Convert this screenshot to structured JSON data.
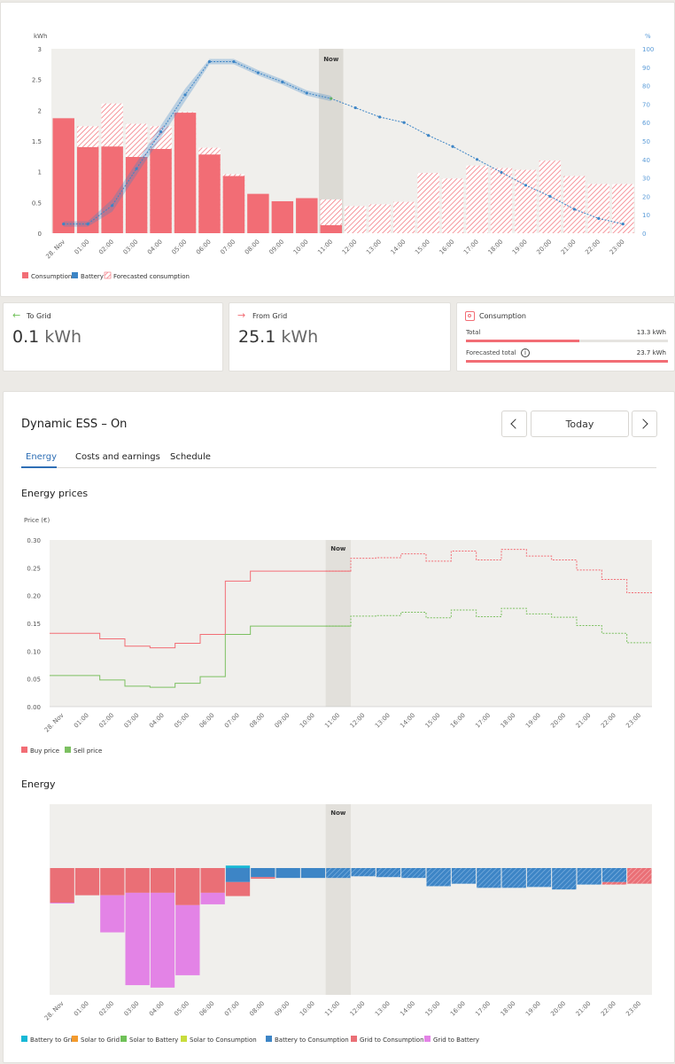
{
  "top_chart": {
    "y_unit_left": "kWh",
    "y_unit_right": "%",
    "y_ticks_left": [
      "3",
      "2.5",
      "2",
      "1.5",
      "1",
      "0.5",
      "0"
    ],
    "y_ticks_right": [
      "100",
      "90",
      "80",
      "70",
      "60",
      "50",
      "40",
      "30",
      "20",
      "10",
      "0"
    ],
    "now_label": "Now",
    "legend": [
      "Consumption",
      "Battery",
      "Forecasted consumption"
    ],
    "colors": {
      "consumption": "#f26d75",
      "battery": "#3d85c6",
      "forecast": "#f26d75",
      "now_band": "#dcdad4"
    }
  },
  "stats": {
    "to_grid": {
      "label": "To Grid",
      "value": "0.1",
      "unit": "kWh",
      "arrow": "arrow-left-icon"
    },
    "from_grid": {
      "label": "From Grid",
      "value": "25.1",
      "unit": "kWh",
      "arrow": "arrow-right-icon"
    },
    "consumption": {
      "label": "Consumption",
      "total_label": "Total",
      "total_value": "13.3 kWh",
      "total_fraction": 0.56,
      "forecast_label": "Forecasted total",
      "forecast_value": "23.7 kWh",
      "forecast_fraction": 1.0
    }
  },
  "dess": {
    "title": "Dynamic ESS – On",
    "date_label": "Today",
    "tabs": [
      "Energy",
      "Costs and earnings",
      "Schedule"
    ],
    "active_tab": 0,
    "prices_heading": "Energy prices",
    "prices_ylabel": "Price (€)",
    "price_ticks": [
      "0.30",
      "0.25",
      "0.20",
      "0.15",
      "0.10",
      "0.05",
      "0.00"
    ],
    "price_legend": [
      "Buy price",
      "Sell price"
    ],
    "energy_heading": "Energy",
    "energy_legend": [
      "Battery to Grid",
      "Solar to Grid",
      "Solar to Battery",
      "Solar to Consumption",
      "Battery to Consumption",
      "Grid to Consumption",
      "Grid to Battery"
    ],
    "energy_legend_colors": [
      "#17b8d6",
      "#f39a2d",
      "#6fc158",
      "#c8dc3c",
      "#3d85c6",
      "#ea6f76",
      "#e383e6"
    ],
    "now_label": "Now"
  },
  "chart_data": [
    {
      "type": "bar",
      "categories": [
        "28. Nov",
        "01:00",
        "02:00",
        "03:00",
        "04:00",
        "05:00",
        "06:00",
        "07:00",
        "08:00",
        "09:00",
        "10:00",
        "11:00",
        "12:00",
        "13:00",
        "14:00",
        "15:00",
        "16:00",
        "17:00",
        "18:00",
        "19:00",
        "20:00",
        "21:00",
        "22:00",
        "23:00"
      ],
      "series": [
        {
          "name": "Consumption",
          "values": [
            1.87,
            1.4,
            1.41,
            1.24,
            1.37,
            1.96,
            1.28,
            0.93,
            0.64,
            0.52,
            0.57,
            0.13,
            0,
            0,
            0,
            0,
            0,
            0,
            0,
            0,
            0,
            0,
            0,
            0
          ]
        },
        {
          "name": "Forecasted consumption",
          "values": [
            0,
            1.74,
            2.11,
            1.78,
            1.74,
            1.97,
            1.39,
            0.96,
            0,
            0,
            0,
            0.55,
            0.44,
            0.47,
            0.51,
            0.98,
            0.89,
            1.1,
            1.06,
            1.03,
            1.18,
            0.93,
            0.8,
            0.8
          ]
        },
        {
          "name": "Battery",
          "values": [
            5,
            5,
            15,
            35,
            55,
            75,
            93,
            93,
            87,
            82,
            76,
            73,
            68,
            63,
            60,
            53,
            47,
            40,
            33,
            26,
            20,
            13,
            8,
            5
          ]
        }
      ],
      "ylim": [
        0,
        3
      ],
      "y2lim": [
        0,
        100
      ],
      "xlabel": "",
      "ylabel": "kWh",
      "y2label": "%"
    },
    {
      "type": "line",
      "categories": [
        "28. Nov",
        "01:00",
        "02:00",
        "03:00",
        "04:00",
        "05:00",
        "06:00",
        "07:00",
        "08:00",
        "09:00",
        "10:00",
        "11:00",
        "12:00",
        "13:00",
        "14:00",
        "15:00",
        "16:00",
        "17:00",
        "18:00",
        "19:00",
        "20:00",
        "21:00",
        "22:00",
        "23:00"
      ],
      "series": [
        {
          "name": "Buy price",
          "values": [
            0.132,
            0.132,
            0.122,
            0.109,
            0.106,
            0.114,
            0.13,
            0.226,
            0.244,
            0.244,
            0.244,
            0.244,
            0.267,
            0.268,
            0.275,
            0.262,
            0.28,
            0.264,
            0.283,
            0.271,
            0.264,
            0.246,
            0.229,
            0.205
          ]
        },
        {
          "name": "Sell price",
          "values": [
            0.056,
            0.056,
            0.048,
            0.037,
            0.035,
            0.042,
            0.054,
            0.13,
            0.145,
            0.145,
            0.145,
            0.145,
            0.163,
            0.164,
            0.17,
            0.16,
            0.174,
            0.162,
            0.177,
            0.167,
            0.161,
            0.146,
            0.132,
            0.115
          ]
        }
      ],
      "ylim": [
        0,
        0.3
      ],
      "xlabel": "",
      "ylabel": "Price (€)"
    },
    {
      "type": "bar",
      "categories": [
        "28. Nov",
        "01:00",
        "02:00",
        "03:00",
        "04:00",
        "05:00",
        "06:00",
        "07:00",
        "08:00",
        "09:00",
        "10:00",
        "11:00",
        "12:00",
        "13:00",
        "14:00",
        "15:00",
        "16:00",
        "17:00",
        "18:00",
        "19:00",
        "20:00",
        "21:00",
        "22:00",
        "23:00"
      ],
      "series": [
        {
          "name": "Battery to Grid",
          "values": [
            0,
            0,
            0,
            0,
            0,
            0,
            0,
            0.03,
            0,
            0,
            0,
            0,
            0,
            0,
            0,
            0,
            0,
            0,
            0,
            0,
            0,
            0,
            0,
            0
          ]
        },
        {
          "name": "Battery to Consumption",
          "values": [
            0,
            0,
            0,
            0,
            0,
            0,
            0,
            -0.17,
            -0.11,
            -0.12,
            -0.12,
            -0.12,
            -0.1,
            -0.11,
            -0.12,
            -0.22,
            -0.19,
            -0.24,
            -0.24,
            -0.23,
            -0.26,
            -0.2,
            -0.17,
            0
          ]
        },
        {
          "name": "Grid to Consumption",
          "values": [
            -0.42,
            -0.33,
            -0.33,
            -0.3,
            -0.3,
            -0.45,
            -0.3,
            -0.17,
            -0.02,
            0,
            0,
            0,
            0,
            0,
            0,
            0,
            0,
            0,
            0,
            0,
            0,
            0,
            -0.03,
            -0.19
          ]
        },
        {
          "name": "Grid to Battery",
          "values": [
            -0.01,
            0,
            -0.45,
            -1.12,
            -1.15,
            -0.85,
            -0.14,
            0,
            0,
            0,
            0,
            0,
            0,
            0,
            0,
            0,
            0,
            0,
            0,
            0,
            0,
            0,
            0,
            0
          ]
        }
      ]
    }
  ]
}
